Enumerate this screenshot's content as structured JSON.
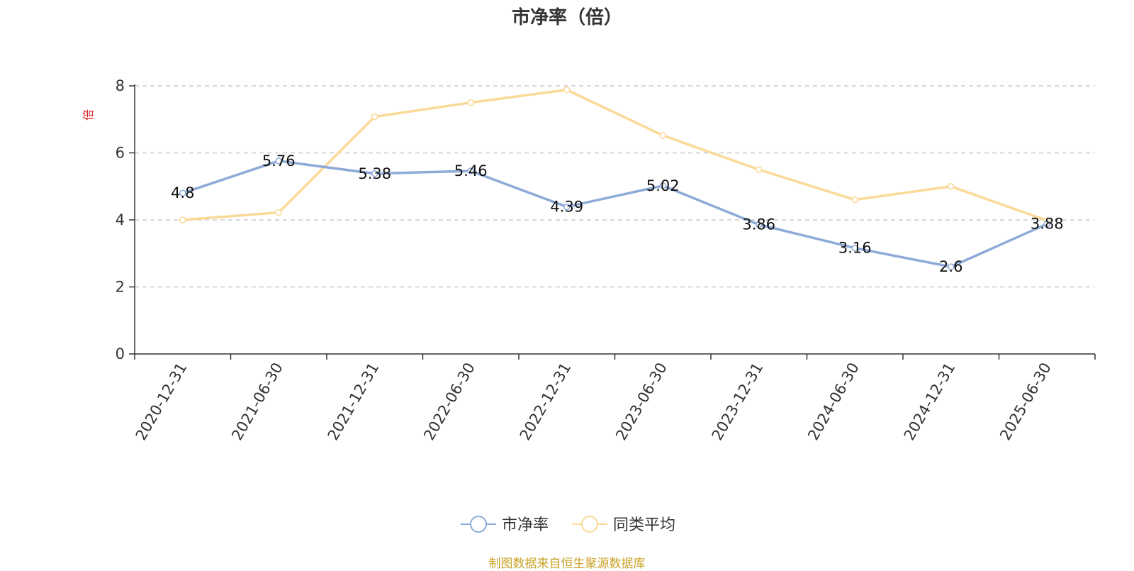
{
  "chart_data": {
    "type": "line",
    "title": "市净率（倍）",
    "ylabel": "倍",
    "xlabel": "",
    "categories": [
      "2020-12-31",
      "2021-06-30",
      "2021-12-31",
      "2022-06-30",
      "2022-12-31",
      "2023-06-30",
      "2023-12-31",
      "2024-06-30",
      "2024-12-31",
      "2025-06-30"
    ],
    "ylim": [
      0,
      8
    ],
    "yticks": [
      0,
      2,
      4,
      6,
      8
    ],
    "grid": true,
    "legend_position": "bottom",
    "series": [
      {
        "name": "市净率",
        "color": "#8eaad8",
        "values": [
          4.8,
          5.76,
          5.38,
          5.46,
          4.39,
          5.02,
          3.86,
          3.16,
          2.6,
          3.88
        ],
        "labels": [
          "4.8",
          "5.76",
          "5.38",
          "5.46",
          "4.39",
          "5.02",
          "3.86",
          "3.16",
          "2.6",
          "3.88"
        ]
      },
      {
        "name": "同类平均",
        "color": "#fbd999",
        "values": [
          4.0,
          4.22,
          7.08,
          7.5,
          7.88,
          6.52,
          5.5,
          4.6,
          5.0,
          3.98
        ]
      }
    ]
  },
  "source": "制图数据来自恒生聚源数据库",
  "colors": {
    "ylabel": "#e02020",
    "source": "#c9a227"
  }
}
